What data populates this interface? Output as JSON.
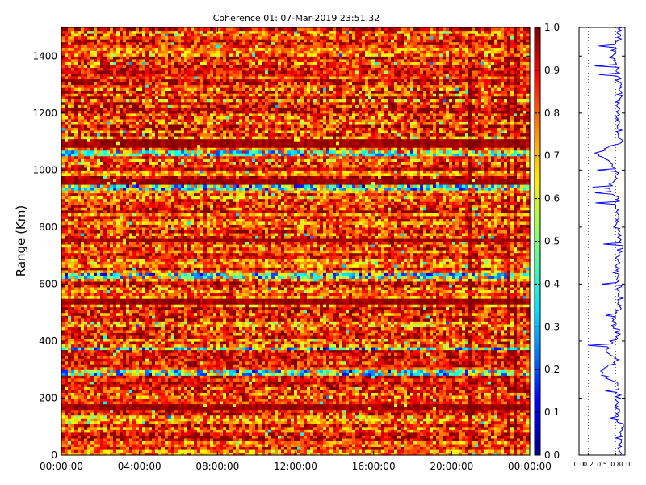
{
  "chart_data": [
    {
      "type": "heatmap",
      "title": "Coherence 01: 07-Mar-2019 23:51:32",
      "xlabel": "",
      "ylabel": "Range (Km)",
      "x_tick_labels": [
        "00:00:00",
        "04:00:00",
        "08:00:00",
        "12:00:00",
        "16:00:00",
        "20:00:00",
        "00:00:00"
      ],
      "x_range": [
        "00:00:00",
        "24:00:00"
      ],
      "y_ticks": [
        0,
        200,
        400,
        600,
        800,
        1000,
        1200,
        1400
      ],
      "ylim": [
        0,
        1500
      ],
      "colormap": "jet",
      "colorbar": {
        "ticks": [
          0.0,
          0.1,
          0.2,
          0.3,
          0.4,
          0.5,
          0.6,
          0.7,
          0.8,
          0.9,
          1.0
        ],
        "range": [
          0,
          1
        ]
      },
      "low_coherence_ranges_km": [
        1060,
        290,
        375,
        940,
        630
      ],
      "high_coherence_ranges_km": [
        1100,
        1090,
        755,
        540,
        960,
        170
      ],
      "value_note": "coherence values mostly 0.7-1.0, lower bands near 290 km and 1060 km",
      "grid": false
    },
    {
      "type": "line",
      "title": "",
      "xlim": [
        0,
        1
      ],
      "x_tick_labels": [
        "0.0",
        "0.2",
        "0.5",
        "0.8",
        "1.0"
      ],
      "ylim": [
        0,
        1500
      ],
      "series_color": "#0000ff",
      "profile_range_km": [
        0,
        50,
        100,
        150,
        200,
        250,
        290,
        330,
        375,
        420,
        470,
        540,
        600,
        640,
        700,
        755,
        800,
        850,
        900,
        940,
        1000,
        1060,
        1100,
        1150,
        1200,
        1250,
        1300,
        1350,
        1400,
        1450,
        1500
      ],
      "profile_coherence": [
        0.88,
        0.86,
        0.9,
        0.87,
        0.85,
        0.84,
        0.45,
        0.82,
        0.6,
        0.86,
        0.75,
        0.9,
        0.86,
        0.8,
        0.87,
        0.92,
        0.8,
        0.86,
        0.82,
        0.7,
        0.84,
        0.4,
        0.92,
        0.86,
        0.85,
        0.88,
        0.86,
        0.84,
        0.7,
        0.86,
        0.9
      ]
    }
  ]
}
